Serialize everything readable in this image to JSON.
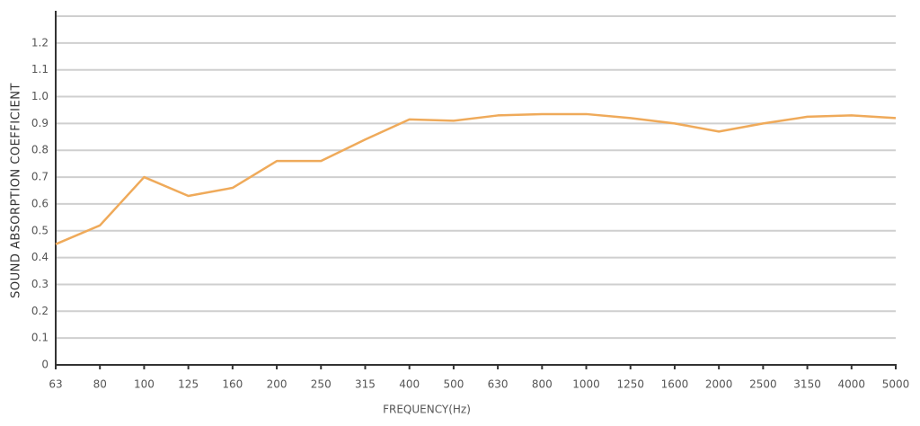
{
  "chart_data": {
    "type": "line",
    "x_label": "FREQUENCY(Hz)",
    "y_label": "SOUND ABSORPTION COEFFICIENT",
    "categories": [
      "63",
      "80",
      "100",
      "125",
      "160",
      "200",
      "250",
      "315",
      "400",
      "500",
      "630",
      "800",
      "1000",
      "1250",
      "1600",
      "2000",
      "2500",
      "3150",
      "4000",
      "5000"
    ],
    "values": [
      0.45,
      0.52,
      0.7,
      0.63,
      0.66,
      0.76,
      0.76,
      0.84,
      0.915,
      0.91,
      0.93,
      0.935,
      0.935,
      0.92,
      0.9,
      0.87,
      0.9,
      0.925,
      0.93,
      0.92
    ],
    "color": "#efaa5a",
    "ylim": [
      0,
      1.3
    ],
    "yticks": [
      0,
      0.1,
      0.2,
      0.3,
      0.4,
      0.5,
      0.6,
      0.7,
      0.8,
      0.9,
      {
        "value": 1,
        "label": "1.0"
      },
      1.1,
      1.2
    ],
    "grid": true
  }
}
